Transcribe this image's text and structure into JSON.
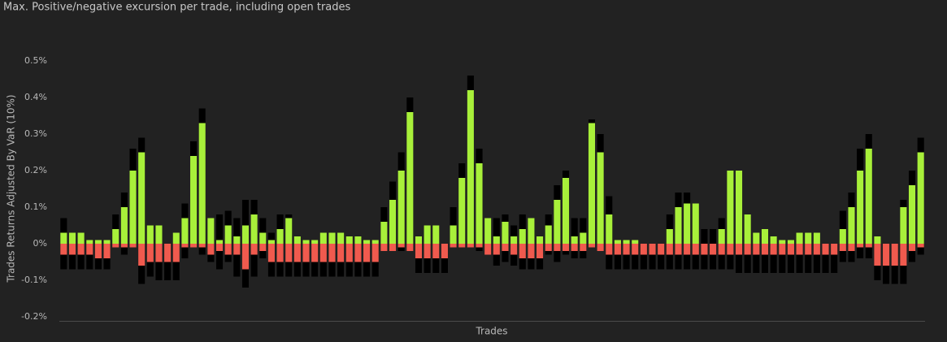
{
  "chart_data": {
    "type": "bar",
    "title": "Max. Positive/negative excursion per trade, including open trades",
    "y_label": "Trades Returns Adjusted By VaR (10%)",
    "x_label": "Trades",
    "ylim": [
      -0.2,
      0.5
    ],
    "yticks": [
      {
        "value": -0.2,
        "label": "-0.2%"
      },
      {
        "value": -0.1,
        "label": "-0.1%"
      },
      {
        "value": 0,
        "label": "0%"
      },
      {
        "value": 0.1,
        "label": "0.1%"
      },
      {
        "value": 0.2,
        "label": "0.2%"
      },
      {
        "value": 0.3,
        "label": "0.3%"
      },
      {
        "value": 0.4,
        "label": "0.4%"
      },
      {
        "value": 0.5,
        "label": "0.5%"
      }
    ],
    "grid": false,
    "series": [
      {
        "color": "#000000",
        "values": [
          0.07,
          0.03,
          0.03,
          0.01,
          0.01,
          0.01,
          0.08,
          0.14,
          0.26,
          0.29,
          0.05,
          0.05,
          0,
          0.03,
          0.11,
          0.28,
          0.37,
          0.07,
          0.08,
          0.09,
          0.07,
          0.12,
          0.12,
          0.07,
          0.03,
          0.08,
          0.08,
          0.02,
          0.01,
          0.01,
          0.03,
          0.03,
          0.03,
          0.02,
          0.02,
          0.01,
          0.01,
          0.1,
          0.17,
          0.25,
          0.4,
          0.02,
          0.05,
          0.05,
          0,
          0.1,
          0.22,
          0.46,
          0.26,
          0.07,
          0.07,
          0.08,
          0.05,
          0.08,
          0.07,
          0.02,
          0.08,
          0.16,
          0.2,
          0.07,
          0.07,
          0.34,
          0.3,
          0.13,
          0.01,
          0.01,
          0.01,
          0,
          0,
          0,
          0.08,
          0.14,
          0.14,
          0.11,
          0.04,
          0.04,
          0.07,
          0.2,
          0.2,
          0.08,
          0.03,
          0.04,
          0.02,
          0.01,
          0.01,
          0.03,
          0.03,
          0.03,
          0,
          0,
          0.09,
          0.14,
          0.26,
          0.3,
          0.02,
          0,
          0,
          0.12,
          0.2,
          0.29
        ]
      },
      {
        "color": "#000000",
        "values": [
          -0.07,
          -0.07,
          -0.07,
          -0.07,
          -0.07,
          -0.07,
          -0.01,
          -0.03,
          -0.01,
          -0.11,
          -0.09,
          -0.1,
          -0.1,
          -0.1,
          -0.04,
          -0.01,
          -0.03,
          -0.05,
          -0.07,
          -0.05,
          -0.09,
          -0.12,
          -0.09,
          -0.04,
          -0.09,
          -0.09,
          -0.09,
          -0.09,
          -0.09,
          -0.09,
          -0.09,
          -0.09,
          -0.09,
          -0.09,
          -0.09,
          -0.09,
          -0.09,
          -0.02,
          -0.02,
          -0.02,
          -0.02,
          -0.08,
          -0.08,
          -0.08,
          -0.08,
          -0.01,
          -0.01,
          -0.01,
          -0.02,
          -0.03,
          -0.06,
          -0.05,
          -0.06,
          -0.07,
          -0.07,
          -0.07,
          -0.03,
          -0.05,
          -0.03,
          -0.04,
          -0.04,
          -0.01,
          -0.02,
          -0.07,
          -0.07,
          -0.07,
          -0.07,
          -0.07,
          -0.07,
          -0.07,
          -0.07,
          -0.07,
          -0.07,
          -0.07,
          -0.07,
          -0.07,
          -0.07,
          -0.07,
          -0.08,
          -0.08,
          -0.08,
          -0.08,
          -0.08,
          -0.08,
          -0.08,
          -0.08,
          -0.08,
          -0.08,
          -0.08,
          -0.08,
          -0.05,
          -0.05,
          -0.04,
          -0.04,
          -0.1,
          -0.11,
          -0.11,
          -0.11,
          -0.05,
          -0.03
        ]
      },
      {
        "color": "#a8f03a",
        "values": [
          0.03,
          0.03,
          0.03,
          0.01,
          0.01,
          0.01,
          0.04,
          0.1,
          0.2,
          0.25,
          0.05,
          0.05,
          0,
          0.03,
          0.07,
          0.24,
          0.33,
          0.07,
          0.01,
          0.05,
          0.02,
          0.05,
          0.08,
          0.03,
          0.01,
          0.04,
          0.07,
          0.02,
          0.01,
          0.01,
          0.03,
          0.03,
          0.03,
          0.02,
          0.02,
          0.01,
          0.01,
          0.06,
          0.12,
          0.2,
          0.36,
          0.02,
          0.05,
          0.05,
          0,
          0.05,
          0.18,
          0.42,
          0.22,
          0.07,
          0.02,
          0.06,
          0.02,
          0.04,
          0.07,
          0.02,
          0.05,
          0.12,
          0.18,
          0.02,
          0.03,
          0.33,
          0.25,
          0.08,
          0.01,
          0.01,
          0.01,
          0,
          0,
          0,
          0.04,
          0.1,
          0.11,
          0.11,
          0,
          0,
          0.04,
          0.2,
          0.2,
          0.08,
          0.03,
          0.04,
          0.02,
          0.01,
          0.01,
          0.03,
          0.03,
          0.03,
          0,
          0,
          0.04,
          0.1,
          0.2,
          0.26,
          0.02,
          0,
          0,
          0.1,
          0.16,
          0.25
        ]
      },
      {
        "color": "#f05a4e",
        "values": [
          -0.03,
          -0.03,
          -0.03,
          -0.03,
          -0.04,
          -0.04,
          -0.01,
          -0.01,
          -0.01,
          -0.06,
          -0.05,
          -0.05,
          -0.05,
          -0.05,
          -0.01,
          -0.01,
          -0.01,
          -0.03,
          -0.02,
          -0.03,
          -0.03,
          -0.07,
          -0.03,
          -0.02,
          -0.05,
          -0.05,
          -0.05,
          -0.05,
          -0.05,
          -0.05,
          -0.05,
          -0.05,
          -0.05,
          -0.05,
          -0.05,
          -0.05,
          -0.05,
          -0.02,
          -0.02,
          -0.01,
          -0.02,
          -0.04,
          -0.04,
          -0.04,
          -0.04,
          -0.01,
          -0.01,
          -0.01,
          -0.01,
          -0.03,
          -0.03,
          -0.02,
          -0.03,
          -0.04,
          -0.04,
          -0.04,
          -0.02,
          -0.02,
          -0.02,
          -0.02,
          -0.02,
          -0.01,
          -0.02,
          -0.03,
          -0.03,
          -0.03,
          -0.03,
          -0.03,
          -0.03,
          -0.03,
          -0.03,
          -0.03,
          -0.03,
          -0.03,
          -0.03,
          -0.03,
          -0.03,
          -0.03,
          -0.03,
          -0.03,
          -0.03,
          -0.03,
          -0.03,
          -0.03,
          -0.03,
          -0.03,
          -0.03,
          -0.03,
          -0.03,
          -0.03,
          -0.02,
          -0.02,
          -0.01,
          -0.01,
          -0.06,
          -0.06,
          -0.06,
          -0.06,
          -0.02,
          -0.01
        ]
      }
    ]
  }
}
